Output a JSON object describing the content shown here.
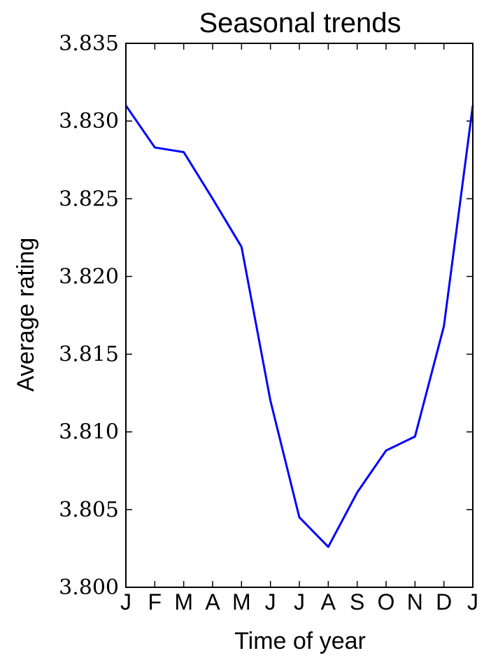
{
  "chart_data": {
    "type": "line",
    "title": "Seasonal trends",
    "xlabel": "Time of year",
    "ylabel": "Average rating",
    "x_tick_labels": [
      "J",
      "F",
      "M",
      "A",
      "M",
      "J",
      "J",
      "A",
      "S",
      "O",
      "N",
      "D",
      "J"
    ],
    "y_tick_labels": [
      "3.800",
      "3.805",
      "3.810",
      "3.815",
      "3.820",
      "3.825",
      "3.830",
      "3.835"
    ],
    "ylim": [
      3.8,
      3.835
    ],
    "xlim": [
      0,
      12
    ],
    "grid": false,
    "series": [
      {
        "color": "#0000ff",
        "x": [
          0,
          1,
          2,
          3,
          4,
          5,
          6,
          7,
          8,
          9,
          10,
          11,
          12
        ],
        "values": [
          3.831,
          3.8283,
          3.828,
          3.825,
          3.8219,
          3.812,
          3.8045,
          3.8026,
          3.8061,
          3.8088,
          3.8097,
          3.8168,
          3.831
        ]
      }
    ]
  }
}
